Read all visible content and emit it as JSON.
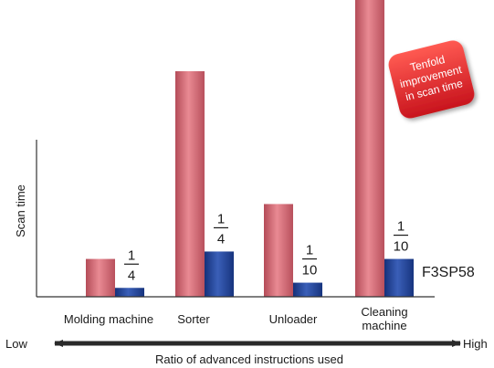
{
  "chart_data": {
    "type": "bar",
    "ylabel": "Scan time",
    "xlabel": "Ratio of advanced instructions used",
    "axis_low_label": "Low",
    "axis_high_label": "High",
    "categories": [
      {
        "lines": [
          "Molding machine"
        ]
      },
      {
        "lines": [
          "Sorter"
        ]
      },
      {
        "lines": [
          "Unloader"
        ]
      },
      {
        "lines": [
          "Cleaning",
          "machine"
        ]
      }
    ],
    "series": [
      {
        "values": [
          51,
          304,
          125,
          400
        ],
        "color": "#c9606c"
      },
      {
        "name": "F3SP58",
        "values": [
          12,
          61,
          19,
          51
        ],
        "color": "#1f3f8f"
      }
    ],
    "ratio_labels": [
      {
        "numerator": "1",
        "denominator": "4"
      },
      {
        "numerator": "1",
        "denominator": "4"
      },
      {
        "numerator": "1",
        "denominator": "10"
      },
      {
        "numerator": "1",
        "denominator": "10"
      }
    ],
    "badge": {
      "lines": [
        "Tenfold",
        "improvement",
        "in scan time"
      ],
      "color": "#d91f26"
    }
  }
}
